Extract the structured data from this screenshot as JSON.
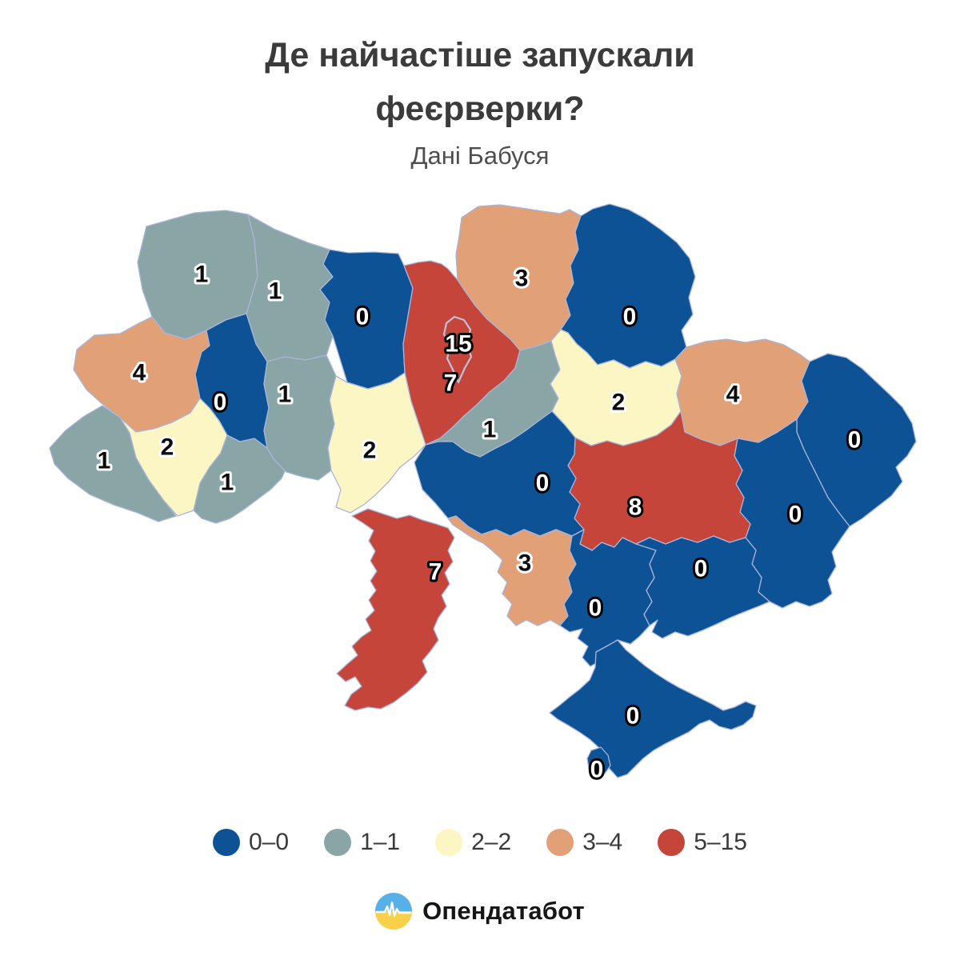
{
  "header": {
    "title": "Де найчастіше запускали феєрверки?",
    "subtitle": "Дані Бабуся"
  },
  "chart_data": {
    "type": "choropleth-map",
    "title": "Де найчастіше запускали феєрверки?",
    "subtitle": "Дані Бабуся",
    "legend_position": "bottom",
    "legend": [
      {
        "label": "0–0",
        "color": "#0d5295"
      },
      {
        "label": "1–1",
        "color": "#8aa5a6"
      },
      {
        "label": "2–2",
        "color": "#fbf6c3"
      },
      {
        "label": "3–4",
        "color": "#e2a077"
      },
      {
        "label": "5–15",
        "color": "#c5453a"
      }
    ],
    "regions": [
      {
        "id": "volyn",
        "value": 1
      },
      {
        "id": "rivne",
        "value": 1
      },
      {
        "id": "zhytomyr",
        "value": 0
      },
      {
        "id": "chernihiv",
        "value": 3
      },
      {
        "id": "sumy",
        "value": 0
      },
      {
        "id": "kyiv-oblast",
        "value": 7
      },
      {
        "id": "kyiv-city",
        "value": 15
      },
      {
        "id": "lviv",
        "value": 4
      },
      {
        "id": "zakarpattia",
        "value": 1
      },
      {
        "id": "ivano-frankivsk",
        "value": 2
      },
      {
        "id": "chernivtsi",
        "value": 1
      },
      {
        "id": "ternopil",
        "value": 0
      },
      {
        "id": "khmelnytskyi",
        "value": 1
      },
      {
        "id": "vinnytsia",
        "value": 2
      },
      {
        "id": "cherkasy",
        "value": 1
      },
      {
        "id": "poltava",
        "value": 2
      },
      {
        "id": "kharkiv",
        "value": 4
      },
      {
        "id": "luhansk",
        "value": 0
      },
      {
        "id": "donetsk",
        "value": 0
      },
      {
        "id": "dnipropetrovsk",
        "value": 8
      },
      {
        "id": "kirovohrad",
        "value": 0
      },
      {
        "id": "mykolaiv",
        "value": 3
      },
      {
        "id": "odesa",
        "value": 7
      },
      {
        "id": "kherson",
        "value": 0
      },
      {
        "id": "zaporizhzhia",
        "value": 0
      },
      {
        "id": "crimea",
        "value": 0
      },
      {
        "id": "sevastopol",
        "value": 0
      }
    ]
  },
  "footer": {
    "brand": "Опендатабот",
    "icon_colors": {
      "top": "#58b0e9",
      "bottom": "#f8d04a",
      "pulse": "#ffffff"
    }
  }
}
